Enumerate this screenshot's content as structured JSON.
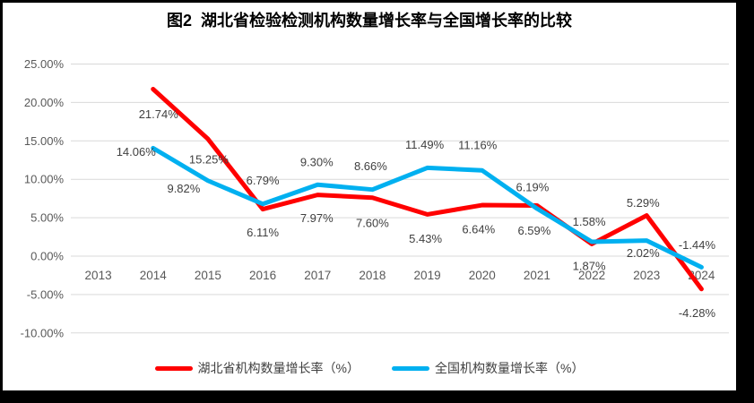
{
  "title": "图2  湖北省检验检测机构数量增长率与全国增长率的比较",
  "chart_data": {
    "type": "line",
    "categories": [
      "2013",
      "2014",
      "2015",
      "2016",
      "2017",
      "2018",
      "2019",
      "2020",
      "2021",
      "2022",
      "2023",
      "2024"
    ],
    "series": [
      {
        "name": "湖北省机构数量增长率（%）",
        "color": "#ff0000",
        "values": [
          null,
          21.74,
          15.25,
          6.11,
          7.97,
          7.6,
          5.43,
          6.64,
          6.59,
          1.58,
          5.29,
          -4.28
        ],
        "labels": [
          "",
          "21.74%",
          "15.25%",
          "6.11%",
          "7.97%",
          "7.60%",
          "5.43%",
          "6.64%",
          "6.59%",
          "1.58%",
          "5.29%",
          "-4.28%"
        ],
        "label_offsets": [
          null,
          [
            6,
            28
          ],
          [
            1,
            23
          ],
          [
            0,
            26
          ],
          [
            -1,
            26
          ],
          [
            0,
            28
          ],
          [
            -2,
            27
          ],
          [
            -4,
            27
          ],
          [
            -3,
            28
          ],
          [
            -3,
            -25
          ],
          [
            -4,
            -14
          ],
          [
            -5,
            27
          ]
        ]
      },
      {
        "name": "全国机构数量增长率（%）",
        "color": "#00b0f0",
        "values": [
          null,
          14.06,
          9.82,
          6.79,
          9.3,
          8.66,
          11.49,
          11.16,
          6.19,
          1.87,
          2.02,
          -1.44
        ],
        "labels": [
          "",
          "14.06%",
          "9.82%",
          "6.79%",
          "9.30%",
          "8.66%",
          "11.49%",
          "11.16%",
          "6.19%",
          "1.87%",
          "2.02%",
          "-1.44%"
        ],
        "label_offsets": [
          null,
          [
            -19,
            4
          ],
          [
            -27,
            9
          ],
          [
            0,
            -26
          ],
          [
            -1,
            -25
          ],
          [
            -2,
            -26
          ],
          [
            -3,
            -26
          ],
          [
            -5,
            -28
          ],
          [
            -5,
            -24
          ],
          [
            -3,
            27
          ],
          [
            -4,
            14
          ],
          [
            -5,
            -25
          ]
        ]
      }
    ],
    "yticks": [
      {
        "value": 25,
        "label": "25.00%"
      },
      {
        "value": 20,
        "label": "20.00%"
      },
      {
        "value": 15,
        "label": "15.00%"
      },
      {
        "value": 10,
        "label": "10.00%"
      },
      {
        "value": 5,
        "label": "5.00%"
      },
      {
        "value": 0,
        "label": "0.00%"
      },
      {
        "value": -5,
        "label": "-5.00%"
      },
      {
        "value": -10,
        "label": "-10.00%"
      }
    ],
    "ylim": [
      -10,
      25
    ],
    "xlabel": "",
    "ylabel": "",
    "grid": true,
    "gridline_color": "#d9d9d9",
    "axis_text_color": "#595959",
    "label_text_color": "#404040",
    "legend_position": "bottom",
    "frame_color": "#000000",
    "background_color": "#ffffff"
  }
}
